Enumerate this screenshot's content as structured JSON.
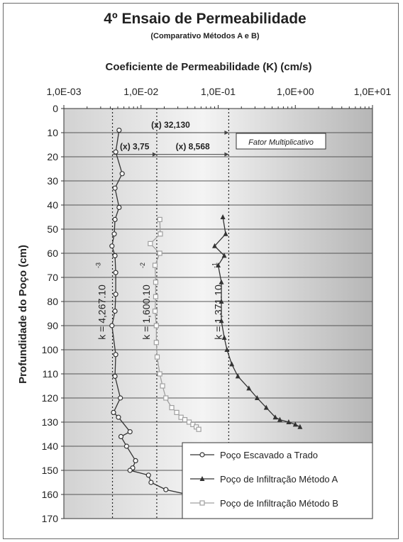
{
  "chart_data": {
    "type": "scatter",
    "title": "4º Ensaio de Permeabilidade",
    "subtitle": "(Comparativo Métodos A e B)",
    "xlabel": "Coeficiente de Permeabilidade (K) (cm/s)",
    "ylabel": "Profundidade do Poço (cm)",
    "x_scale": "log",
    "x_ticks": [
      "1,0E-03",
      "1,0E-02",
      "1,0E-01",
      "1,0E+00",
      "1,0E+01"
    ],
    "x_tick_values": [
      0.001,
      0.01,
      0.1,
      1,
      10
    ],
    "y_ticks": [
      0,
      10,
      20,
      30,
      40,
      50,
      60,
      70,
      80,
      90,
      100,
      110,
      120,
      130,
      140,
      150,
      160,
      170
    ],
    "xlim": [
      0.001,
      10
    ],
    "ylim": [
      0,
      170
    ],
    "y_inverted": true,
    "grid": "horizontal",
    "legend_position": "bottom-right",
    "series": [
      {
        "name": "Poço Escavado a Trado",
        "color": "#333333",
        "marker": "circle",
        "points": [
          [
            0.0052,
            9
          ],
          [
            0.0047,
            18
          ],
          [
            0.0057,
            27
          ],
          [
            0.0046,
            33
          ],
          [
            0.0052,
            41
          ],
          [
            0.0046,
            46
          ],
          [
            0.0045,
            52
          ],
          [
            0.0042,
            57
          ],
          [
            0.0046,
            61
          ],
          [
            0.0047,
            68
          ],
          [
            0.0047,
            77
          ],
          [
            0.0046,
            84
          ],
          [
            0.0042,
            90
          ],
          [
            0.0047,
            102
          ],
          [
            0.0046,
            111
          ],
          [
            0.0054,
            120
          ],
          [
            0.0044,
            126
          ],
          [
            0.0051,
            128
          ],
          [
            0.0072,
            134
          ],
          [
            0.0055,
            136
          ],
          [
            0.0065,
            140
          ],
          [
            0.0085,
            146
          ],
          [
            0.0078,
            149
          ],
          [
            0.0072,
            150
          ],
          [
            0.0125,
            152
          ],
          [
            0.0135,
            155
          ],
          [
            0.021,
            158
          ],
          [
            0.04,
            160
          ]
        ]
      },
      {
        "name": "Poço de Infiltração Método A",
        "color": "#333333",
        "marker": "triangle",
        "points": [
          [
            0.115,
            45
          ],
          [
            0.125,
            52
          ],
          [
            0.09,
            57
          ],
          [
            0.12,
            61
          ],
          [
            0.1,
            65
          ],
          [
            0.11,
            72
          ],
          [
            0.11,
            80
          ],
          [
            0.11,
            88
          ],
          [
            0.12,
            95
          ],
          [
            0.13,
            100
          ],
          [
            0.15,
            106
          ],
          [
            0.18,
            111
          ],
          [
            0.25,
            116
          ],
          [
            0.32,
            120
          ],
          [
            0.42,
            124
          ],
          [
            0.55,
            128
          ],
          [
            0.63,
            129
          ],
          [
            0.82,
            130
          ],
          [
            1.0,
            131
          ],
          [
            1.15,
            132
          ]
        ]
      },
      {
        "name": "Poço de Infiltração Método B",
        "color": "#a0a0a0",
        "marker": "square",
        "points": [
          [
            0.0175,
            46
          ],
          [
            0.0178,
            52
          ],
          [
            0.0132,
            56
          ],
          [
            0.0175,
            60
          ],
          [
            0.0152,
            65
          ],
          [
            0.0155,
            72
          ],
          [
            0.0155,
            78
          ],
          [
            0.0152,
            84
          ],
          [
            0.0158,
            90
          ],
          [
            0.0158,
            97
          ],
          [
            0.0162,
            103
          ],
          [
            0.0175,
            110
          ],
          [
            0.019,
            115
          ],
          [
            0.021,
            120
          ],
          [
            0.025,
            124
          ],
          [
            0.029,
            126
          ],
          [
            0.033,
            128
          ],
          [
            0.037,
            129
          ],
          [
            0.042,
            130
          ],
          [
            0.047,
            131
          ],
          [
            0.052,
            132
          ],
          [
            0.056,
            133
          ]
        ]
      }
    ],
    "mean_lines": [
      {
        "value": 0.004267,
        "label": "k = 4,267.10",
        "exponent": "-3"
      },
      {
        "value": 0.016,
        "label": "k = 1,600.10",
        "exponent": "-2"
      },
      {
        "value": 0.1371,
        "label": "k = 1,371.10",
        "exponent": "-1"
      }
    ],
    "annotations": [
      {
        "text": "(x) 32,130",
        "from": 0.004267,
        "to": 0.1371,
        "depth": 10
      },
      {
        "text": "(x) 3,75",
        "from": 0.004267,
        "to": 0.016,
        "depth": 19
      },
      {
        "text": "(x) 8,568",
        "from": 0.016,
        "to": 0.1371,
        "depth": 19
      }
    ],
    "callout": "Fator Multiplicativo"
  }
}
